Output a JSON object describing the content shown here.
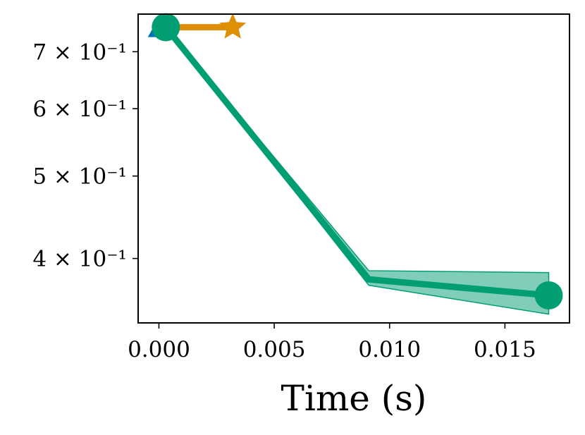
{
  "chart_data": {
    "type": "line",
    "xlabel": "Time (s)",
    "ylabel": "",
    "xlim": [
      -0.0009,
      0.0178
    ],
    "ylim": [
      0.336,
      0.775
    ],
    "yscale": "log",
    "grid": false,
    "x_ticks": [
      {
        "value": 0.0,
        "label": "0.000"
      },
      {
        "value": 0.005,
        "label": "0.005"
      },
      {
        "value": 0.01,
        "label": "0.010"
      },
      {
        "value": 0.015,
        "label": "0.015"
      }
    ],
    "y_ticks": [
      {
        "value": 0.4,
        "label": "4 × 10⁻¹"
      },
      {
        "value": 0.5,
        "label": "5 × 10⁻¹"
      },
      {
        "value": 0.6,
        "label": "6 × 10⁻¹"
      },
      {
        "value": 0.7,
        "label": "7 × 10⁻¹"
      }
    ],
    "series": [
      {
        "color": "#0173b2",
        "marker": "triangle",
        "x": [
          0.0001
        ],
        "y": [
          0.748
        ]
      },
      {
        "color": "#de8f05",
        "marker": "star",
        "x": [
          0.0003,
          0.0032
        ],
        "y": [
          0.748,
          0.748
        ]
      },
      {
        "color": "#029e73",
        "marker": "circle",
        "x": [
          0.0003,
          0.0091,
          0.0169
        ],
        "y": [
          0.748,
          0.378,
          0.362
        ],
        "band_low": [
          0.748,
          0.372,
          0.344
        ],
        "band_high": [
          0.748,
          0.387,
          0.385
        ]
      }
    ]
  }
}
